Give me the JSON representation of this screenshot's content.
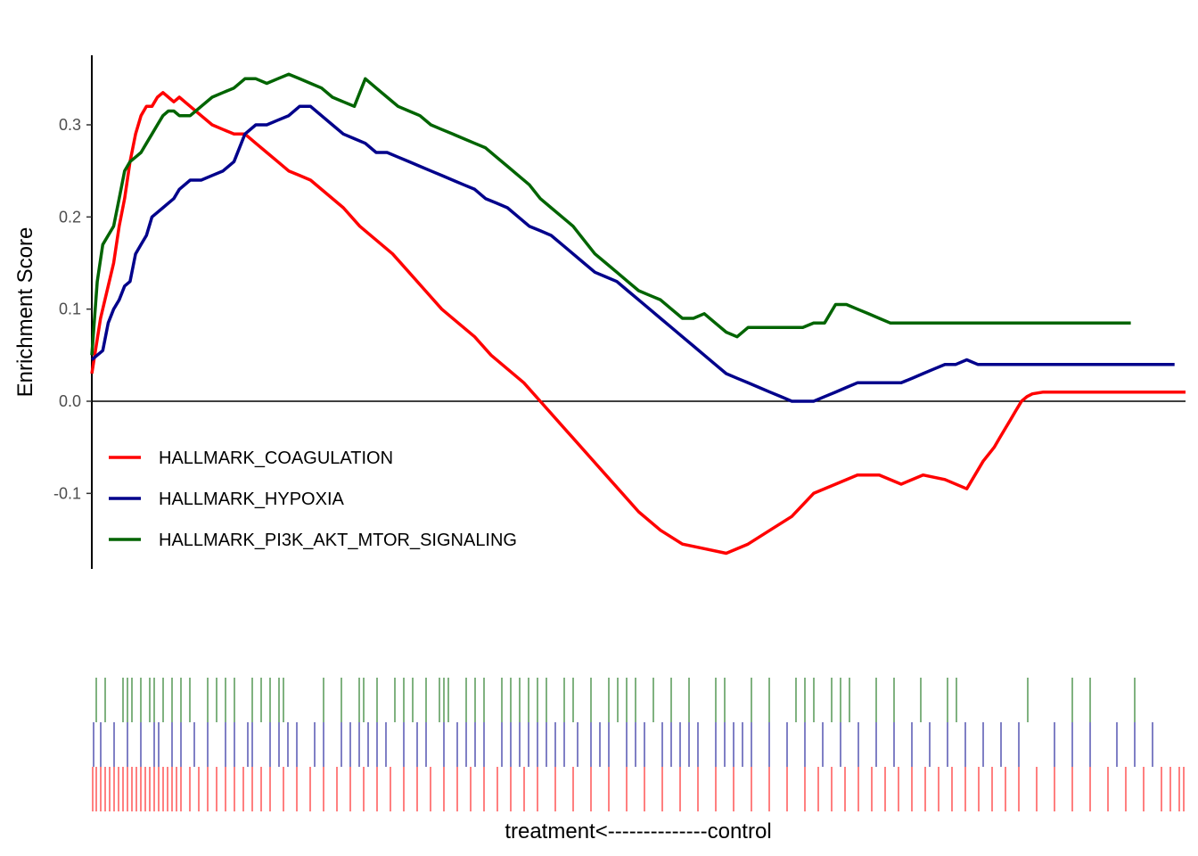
{
  "chart_data": {
    "type": "line",
    "title": "",
    "ylabel": "Enrichment Score",
    "xlabel": "treatment<--------------control",
    "ylim": [
      -0.18,
      0.37
    ],
    "xlim": [
      0,
      1000
    ],
    "yticks": [
      -0.1,
      0.0,
      0.1,
      0.2,
      0.3
    ],
    "ytick_labels": [
      "-0.1",
      "0.0",
      "0.1",
      "0.2",
      "0.3"
    ],
    "grid": false,
    "legend": "bottom-left",
    "zero_line": true,
    "series": [
      {
        "name": "HALLMARK_COAGULATION",
        "color": "#ff0000",
        "x": [
          0,
          4,
          8,
          12,
          16,
          20,
          25,
          30,
          35,
          40,
          45,
          50,
          55,
          60,
          65,
          70,
          75,
          80,
          90,
          100,
          110,
          120,
          130,
          140,
          150,
          160,
          170,
          180,
          190,
          200,
          215,
          230,
          245,
          260,
          275,
          290,
          305,
          320,
          335,
          350,
          365,
          380,
          395,
          410,
          425,
          440,
          455,
          470,
          485,
          500,
          520,
          540,
          560,
          580,
          600,
          620,
          640,
          660,
          680,
          700,
          720,
          740,
          760,
          780,
          800,
          815,
          825,
          830,
          835,
          840,
          845,
          850,
          855,
          860,
          870,
          880,
          890,
          900,
          910,
          920,
          930,
          940,
          950,
          960,
          970,
          975,
          980,
          985,
          990,
          995,
          1000
        ],
        "y": [
          0.03,
          0.06,
          0.09,
          0.11,
          0.13,
          0.15,
          0.19,
          0.22,
          0.26,
          0.29,
          0.31,
          0.32,
          0.32,
          0.33,
          0.335,
          0.33,
          0.325,
          0.33,
          0.32,
          0.31,
          0.3,
          0.295,
          0.29,
          0.29,
          0.28,
          0.27,
          0.26,
          0.25,
          0.245,
          0.24,
          0.225,
          0.21,
          0.19,
          0.175,
          0.16,
          0.14,
          0.12,
          0.1,
          0.085,
          0.07,
          0.05,
          0.035,
          0.02,
          0.0,
          -0.02,
          -0.04,
          -0.06,
          -0.08,
          -0.1,
          -0.12,
          -0.14,
          -0.155,
          -0.16,
          -0.165,
          -0.155,
          -0.14,
          -0.125,
          -0.1,
          -0.09,
          -0.08,
          -0.08,
          -0.09,
          -0.08,
          -0.085,
          -0.095,
          -0.065,
          -0.05,
          -0.04,
          -0.03,
          -0.02,
          -0.01,
          0.0,
          0.005,
          0.008,
          0.01,
          0.01,
          0.01,
          0.01,
          0.01,
          0.01,
          0.01,
          0.01,
          0.01,
          0.01,
          0.01,
          0.01,
          0.01,
          0.01,
          0.01,
          0.01,
          0.01
        ]
      },
      {
        "name": "HALLMARK_HYPOXIA",
        "color": "#00008b",
        "x": [
          0,
          5,
          10,
          15,
          20,
          25,
          30,
          35,
          40,
          45,
          50,
          55,
          60,
          65,
          70,
          75,
          80,
          90,
          100,
          110,
          120,
          130,
          140,
          150,
          160,
          170,
          180,
          190,
          200,
          210,
          220,
          230,
          240,
          250,
          260,
          270,
          280,
          290,
          300,
          310,
          320,
          330,
          340,
          350,
          360,
          370,
          380,
          390,
          400,
          410,
          420,
          430,
          440,
          450,
          460,
          470,
          480,
          490,
          500,
          510,
          520,
          530,
          540,
          550,
          560,
          570,
          580,
          590,
          600,
          610,
          620,
          630,
          640,
          650,
          660,
          670,
          680,
          690,
          700,
          710,
          720,
          730,
          740,
          750,
          760,
          770,
          780,
          790,
          800,
          810,
          820,
          830,
          840,
          850,
          860,
          870,
          880,
          890,
          900,
          910,
          920,
          930,
          940,
          950,
          960,
          970,
          980,
          990
        ],
        "y": [
          0.045,
          0.05,
          0.055,
          0.085,
          0.1,
          0.11,
          0.125,
          0.13,
          0.16,
          0.17,
          0.18,
          0.2,
          0.205,
          0.21,
          0.215,
          0.22,
          0.23,
          0.24,
          0.24,
          0.245,
          0.25,
          0.26,
          0.29,
          0.3,
          0.3,
          0.305,
          0.31,
          0.32,
          0.32,
          0.31,
          0.3,
          0.29,
          0.285,
          0.28,
          0.27,
          0.27,
          0.265,
          0.26,
          0.255,
          0.25,
          0.245,
          0.24,
          0.235,
          0.23,
          0.22,
          0.215,
          0.21,
          0.2,
          0.19,
          0.185,
          0.18,
          0.17,
          0.16,
          0.15,
          0.14,
          0.135,
          0.13,
          0.12,
          0.11,
          0.1,
          0.09,
          0.08,
          0.07,
          0.06,
          0.05,
          0.04,
          0.03,
          0.025,
          0.02,
          0.015,
          0.01,
          0.005,
          0.0,
          0.0,
          0.0,
          0.005,
          0.01,
          0.015,
          0.02,
          0.02,
          0.02,
          0.02,
          0.02,
          0.025,
          0.03,
          0.035,
          0.04,
          0.04,
          0.045,
          0.04,
          0.04,
          0.04,
          0.04,
          0.04,
          0.04,
          0.04,
          0.04,
          0.04,
          0.04,
          0.04,
          0.04,
          0.04,
          0.04,
          0.04,
          0.04,
          0.04,
          0.04,
          0.04
        ]
      },
      {
        "name": "HALLMARK_PI3K_AKT_MTOR_SIGNALING",
        "color": "#006400",
        "x": [
          0,
          5,
          10,
          15,
          20,
          25,
          30,
          35,
          40,
          45,
          50,
          55,
          60,
          65,
          70,
          75,
          80,
          90,
          100,
          110,
          120,
          130,
          140,
          150,
          160,
          170,
          180,
          190,
          200,
          210,
          220,
          230,
          240,
          250,
          260,
          270,
          280,
          290,
          300,
          310,
          320,
          330,
          340,
          350,
          360,
          370,
          380,
          390,
          400,
          410,
          420,
          430,
          440,
          450,
          460,
          470,
          480,
          490,
          500,
          510,
          520,
          530,
          540,
          550,
          560,
          570,
          580,
          590,
          600,
          610,
          620,
          630,
          640,
          650,
          660,
          670,
          680,
          690,
          700,
          710,
          720,
          730,
          740,
          750,
          760,
          770,
          780,
          790,
          800,
          810,
          820,
          830,
          840,
          850,
          860,
          870,
          880,
          890,
          900,
          910,
          920,
          930,
          940,
          950
        ],
        "y": [
          0.05,
          0.13,
          0.17,
          0.18,
          0.19,
          0.22,
          0.25,
          0.26,
          0.265,
          0.27,
          0.28,
          0.29,
          0.3,
          0.31,
          0.315,
          0.315,
          0.31,
          0.31,
          0.32,
          0.33,
          0.335,
          0.34,
          0.35,
          0.35,
          0.345,
          0.35,
          0.355,
          0.35,
          0.345,
          0.34,
          0.33,
          0.325,
          0.32,
          0.35,
          0.34,
          0.33,
          0.32,
          0.315,
          0.31,
          0.3,
          0.295,
          0.29,
          0.285,
          0.28,
          0.275,
          0.265,
          0.255,
          0.245,
          0.235,
          0.22,
          0.21,
          0.2,
          0.19,
          0.175,
          0.16,
          0.15,
          0.14,
          0.13,
          0.12,
          0.115,
          0.11,
          0.1,
          0.09,
          0.09,
          0.095,
          0.085,
          0.075,
          0.07,
          0.08,
          0.08,
          0.08,
          0.08,
          0.08,
          0.08,
          0.085,
          0.085,
          0.105,
          0.105,
          0.1,
          0.095,
          0.09,
          0.085,
          0.085,
          0.085,
          0.085,
          0.085,
          0.085,
          0.085,
          0.085,
          0.085,
          0.085,
          0.085,
          0.085,
          0.085,
          0.085,
          0.085,
          0.085,
          0.085,
          0.085,
          0.085,
          0.085,
          0.085,
          0.085,
          0.085
        ]
      }
    ],
    "hit_rugs": [
      {
        "series": "HALLMARK_PI3K_AKT_MTOR_SIGNALING",
        "color": "#006400",
        "positions": [
          5,
          15,
          35,
          40,
          45,
          55,
          65,
          70,
          80,
          90,
          100,
          110,
          130,
          140,
          150,
          160,
          180,
          190,
          200,
          210,
          215,
          260,
          280,
          300,
          305,
          320,
          340,
          350,
          360,
          375,
          390,
          395,
          400,
          420,
          430,
          440,
          460,
          470,
          480,
          490,
          500,
          510,
          530,
          540,
          560,
          580,
          590,
          600,
          610,
          630,
          650,
          670,
          700,
          710,
          740,
          760,
          790,
          800,
          810,
          830,
          840,
          850,
          880,
          900,
          930,
          960,
          970,
          1050,
          1100,
          1120,
          1170
        ]
      },
      {
        "series": "HALLMARK_HYPOXIA",
        "color": "#00008b",
        "positions": [
          2,
          10,
          25,
          40,
          55,
          70,
          75,
          90,
          100,
          115,
          130,
          150,
          160,
          175,
          180,
          200,
          210,
          220,
          230,
          250,
          260,
          280,
          290,
          300,
          310,
          320,
          330,
          350,
          365,
          375,
          395,
          410,
          420,
          430,
          440,
          460,
          470,
          480,
          490,
          500,
          510,
          520,
          530,
          545,
          560,
          570,
          580,
          600,
          610,
          620,
          640,
          650,
          660,
          670,
          680,
          700,
          710,
          720,
          730,
          740,
          760,
          780,
          800,
          820,
          840,
          860,
          880,
          900,
          920,
          940,
          960,
          980,
          1000,
          1020,
          1040,
          1080,
          1100,
          1120,
          1150,
          1170,
          1190
        ]
      },
      {
        "series": "HALLMARK_COAGULATION",
        "color": "#ff0000",
        "positions": [
          1,
          5,
          10,
          15,
          20,
          25,
          30,
          35,
          40,
          45,
          50,
          55,
          60,
          65,
          70,
          75,
          80,
          85,
          90,
          95,
          100,
          110,
          120,
          130,
          140,
          150,
          160,
          170,
          180,
          190,
          200,
          215,
          230,
          245,
          260,
          275,
          290,
          305,
          320,
          335,
          350,
          365,
          380,
          395,
          410,
          425,
          440,
          455,
          470,
          485,
          500,
          520,
          540,
          560,
          580,
          600,
          620,
          640,
          660,
          680,
          700,
          720,
          740,
          760,
          780,
          800,
          815,
          830,
          845,
          860,
          875,
          890,
          905,
          920,
          935,
          950,
          965,
          980,
          995,
          1010,
          1025,
          1040,
          1060,
          1080,
          1100,
          1120,
          1140,
          1160,
          1180,
          1200,
          1210,
          1220,
          1225
        ]
      }
    ]
  }
}
